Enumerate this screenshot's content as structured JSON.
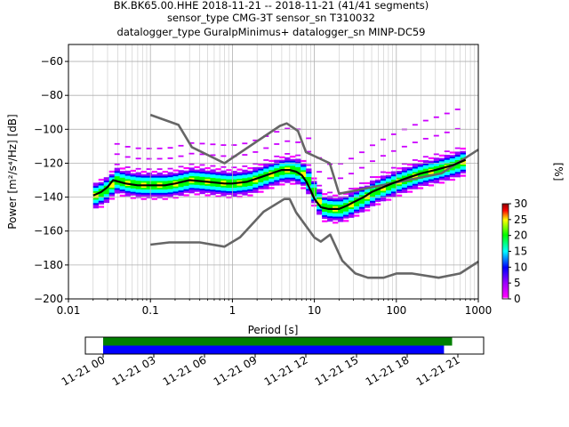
{
  "title": {
    "line1": "BK.BK65.00.HHE   2018-11-21 -- 2018-11-21  (41/41 segments)",
    "line2": "sensor_type CMG-3T sensor_sn T310032",
    "line3": "datalogger_type GuralpMinimus+ datalogger_sn MINP-DC59"
  },
  "colorbar_label": "[%]",
  "colorbar_ticks": [
    "0",
    "5",
    "10",
    "15",
    "20",
    "25",
    "30"
  ],
  "chart_data": [
    {
      "type": "heatmap",
      "title": "",
      "xlabel": "Period [s]",
      "ylabel": "Power [m²/s⁴/Hz] [dB]",
      "x_scale": "log",
      "xlim": [
        0.01,
        1000
      ],
      "ylim": [
        -200,
        -50
      ],
      "grid": true,
      "x_tick_labels": [
        "0.01",
        "0.1",
        "1",
        "10",
        "100",
        "1000"
      ],
      "y_tick_labels": [
        "-60",
        "-80",
        "-100",
        "-120",
        "-140",
        "-160",
        "-180",
        "-200"
      ],
      "colorbar_range": [
        0,
        30
      ],
      "series": [
        {
          "role": "high noise model",
          "color": "#666666",
          "x": [
            0.1,
            0.22,
            0.32,
            0.8,
            3.8,
            4.6,
            6.3,
            7.9,
            15.4,
            20,
            354.8,
            1000
          ],
          "y": [
            -91.5,
            -97.4,
            -110.5,
            -120,
            -98,
            -96.5,
            -101,
            -113.5,
            -120,
            -138,
            -126,
            -112
          ]
        },
        {
          "role": "low noise model",
          "color": "#666666",
          "x": [
            0.1,
            0.17,
            0.4,
            0.8,
            1.24,
            2.4,
            4.3,
            5,
            6,
            10,
            12,
            15.6,
            21.9,
            31.6,
            45,
            70,
            101,
            154,
            328,
            600,
            1000
          ],
          "y": [
            -168,
            -166.7,
            -166.7,
            -169.2,
            -163.7,
            -148.6,
            -141.1,
            -141.1,
            -149,
            -163.8,
            -166.2,
            -162.1,
            -177.5,
            -185,
            -187.5,
            -187.5,
            -185,
            -185,
            -187.5,
            -185,
            -178
          ]
        },
        {
          "role": "mode",
          "color": "#000000",
          "x": [
            0.02,
            0.025,
            0.03,
            0.035,
            0.05,
            0.07,
            0.1,
            0.15,
            0.2,
            0.3,
            0.5,
            0.8,
            1,
            1.5,
            2,
            3,
            4,
            5,
            6,
            7,
            8,
            9,
            10,
            12,
            15,
            20,
            25,
            30,
            40,
            50,
            70,
            100,
            150,
            200,
            300,
            500,
            700
          ],
          "y": [
            -139,
            -137,
            -134,
            -130,
            -132,
            -133,
            -133,
            -133,
            -132,
            -130,
            -131,
            -132,
            -132,
            -131,
            -129,
            -126,
            -124,
            -124,
            -125,
            -127,
            -131,
            -136,
            -141,
            -146,
            -147,
            -147,
            -145,
            -143,
            -140,
            -137,
            -134,
            -131,
            -128,
            -126,
            -124,
            -121,
            -118
          ]
        }
      ]
    },
    {
      "type": "timeline",
      "title": "",
      "x_tick_labels": [
        "11-21 00",
        "11-21 03",
        "11-21 06",
        "11-21 09",
        "11-21 12",
        "11-21 15",
        "11-21 18",
        "11-21 21"
      ],
      "bars": [
        {
          "color": "#008000",
          "start": "11-21 00:00",
          "end": "11-21 21:30"
        },
        {
          "color": "#0000ff",
          "start": "11-21 00:00",
          "end": "11-21 21:00"
        }
      ]
    }
  ]
}
